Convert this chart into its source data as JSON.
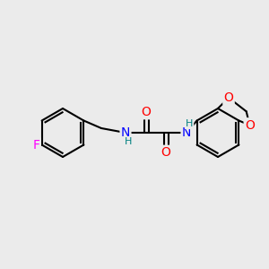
{
  "background_color": "#ebebeb",
  "bond_color": "#000000",
  "atom_colors": {
    "N": "#0000ff",
    "O": "#ff0000",
    "F": "#ff00ff",
    "H": "#008080",
    "C": "#000000"
  },
  "figsize": [
    3.0,
    3.0
  ],
  "dpi": 100
}
